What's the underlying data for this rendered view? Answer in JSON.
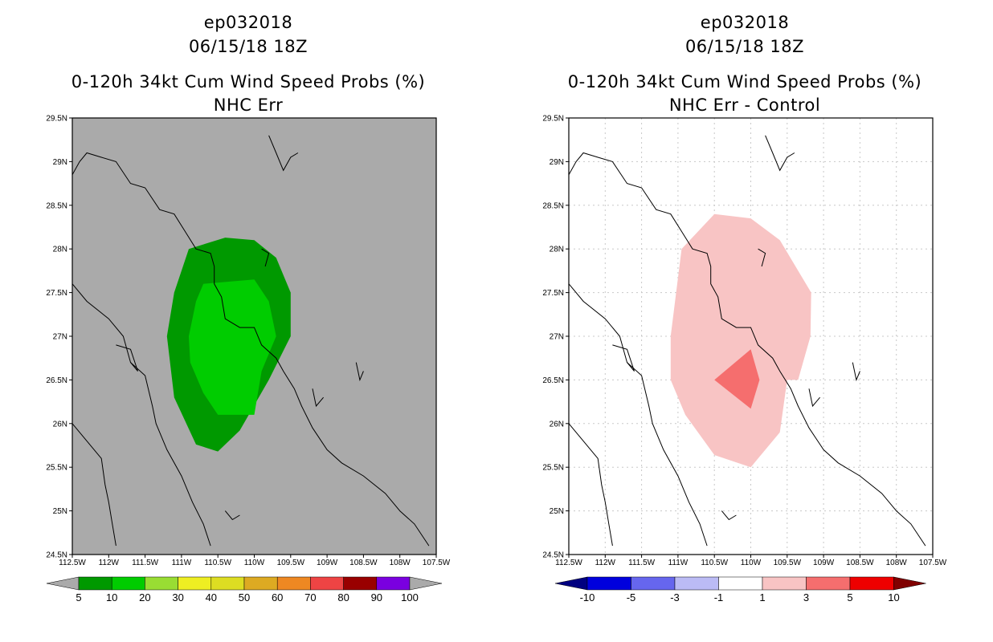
{
  "panels": [
    {
      "id": "left",
      "title_lines": [
        "ep032018",
        "06/15/18 18Z",
        "0-120h 34kt Cum Wind Speed Probs (%)",
        "NHC Err"
      ],
      "background": "#aaaaaa",
      "gridlines": false,
      "colorbar": {
        "colors": [
          "#009900",
          "#00cc00",
          "#99dd33",
          "#eeee22",
          "#dddd22",
          "#ddaa22",
          "#ee8822",
          "#ee4444",
          "#990000",
          "#7a00e0"
        ],
        "labels": [
          "5",
          "10",
          "20",
          "30",
          "40",
          "50",
          "60",
          "70",
          "80",
          "90",
          "100"
        ],
        "arrow_left": "#aaaaaa",
        "arrow_right": "#aaaaaa"
      }
    },
    {
      "id": "right",
      "title_lines": [
        "ep032018",
        "06/15/18 18Z",
        "0-120h 34kt Cum Wind Speed Probs (%)",
        "NHC Err - Control"
      ],
      "background": "#ffffff",
      "gridlines": true,
      "colorbar": {
        "colors": [
          "#0000dd",
          "#6666ee",
          "#bbbbf5",
          "#ffffff",
          "#f8c4c4",
          "#f56e6e",
          "#ee0000"
        ],
        "labels": [
          "-10",
          "-5",
          "-3",
          "-1",
          "1",
          "3",
          "5",
          "10"
        ],
        "arrow_left": "#000080",
        "arrow_right": "#800000"
      }
    }
  ],
  "chart_data": [
    {
      "type": "contour-map",
      "panel": "left",
      "title": "0-120h 34kt Cum Wind Speed Probs (%)",
      "subtitle": "NHC Err",
      "x_ticks": [
        "112.5W",
        "112W",
        "111.5W",
        "111W",
        "110.5W",
        "110W",
        "109.5W",
        "109W",
        "108.5W",
        "108W",
        "107.5W"
      ],
      "y_ticks": [
        "24.5N",
        "25N",
        "25.5N",
        "26N",
        "26.5N",
        "27N",
        "27.5N",
        "28N",
        "28.5N",
        "29N",
        "29.5N"
      ],
      "xlim": [
        -112.5,
        -107.5
      ],
      "ylim": [
        24.5,
        29.5
      ],
      "regions": [
        {
          "level": "5-10",
          "color": "#009900",
          "lon": [
            -110.9,
            -110.4,
            -110.0,
            -109.7,
            -109.5,
            -109.5,
            -109.8,
            -110.2,
            -110.5,
            -110.8,
            -111.1,
            -111.2,
            -111.1
          ],
          "lat": [
            28.0,
            28.13,
            28.1,
            27.9,
            27.5,
            27.0,
            26.5,
            25.92,
            25.68,
            25.76,
            26.3,
            27.0,
            27.5
          ]
        },
        {
          "level": "10-20",
          "color": "#00cc00",
          "lon": [
            -110.7,
            -110.0,
            -109.8,
            -109.7,
            -109.9,
            -110.0,
            -110.5,
            -110.7,
            -110.88,
            -110.9,
            -110.8
          ],
          "lat": [
            27.6,
            27.65,
            27.4,
            27.0,
            26.6,
            26.1,
            26.1,
            26.35,
            26.7,
            27.0,
            27.4
          ]
        }
      ]
    },
    {
      "type": "contour-map",
      "panel": "right",
      "title": "0-120h 34kt Cum Wind Speed Probs (%)",
      "subtitle": "NHC Err - Control",
      "x_ticks": [
        "112.5W",
        "112W",
        "111.5W",
        "111W",
        "110.5W",
        "110W",
        "109.5W",
        "109W",
        "108.5W",
        "108W",
        "107.5W"
      ],
      "y_ticks": [
        "24.5N",
        "25N",
        "25.5N",
        "26N",
        "26.5N",
        "27N",
        "27.5N",
        "28N",
        "28.5N",
        "29N",
        "29.5N"
      ],
      "xlim": [
        -112.5,
        -107.5
      ],
      "ylim": [
        24.5,
        29.5
      ],
      "regions": [
        {
          "level": "1-3",
          "color": "#f8c4c4",
          "lon": [
            -110.5,
            -110.0,
            -109.6,
            -109.17,
            -109.18,
            -109.35,
            -109.5,
            -109.6,
            -109.9,
            -110.0,
            -110.5,
            -110.9,
            -111.1,
            -111.1,
            -110.95
          ],
          "lat": [
            28.4,
            28.35,
            28.1,
            27.5,
            27.0,
            26.5,
            26.5,
            25.9,
            25.6,
            25.5,
            25.64,
            26.1,
            26.5,
            27.0,
            28.0
          ]
        },
        {
          "level": "3-5",
          "color": "#f56e6e",
          "lon": [
            -110.5,
            -110.0,
            -109.88,
            -110.0
          ],
          "lat": [
            26.5,
            26.85,
            26.5,
            26.17
          ]
        }
      ]
    }
  ]
}
